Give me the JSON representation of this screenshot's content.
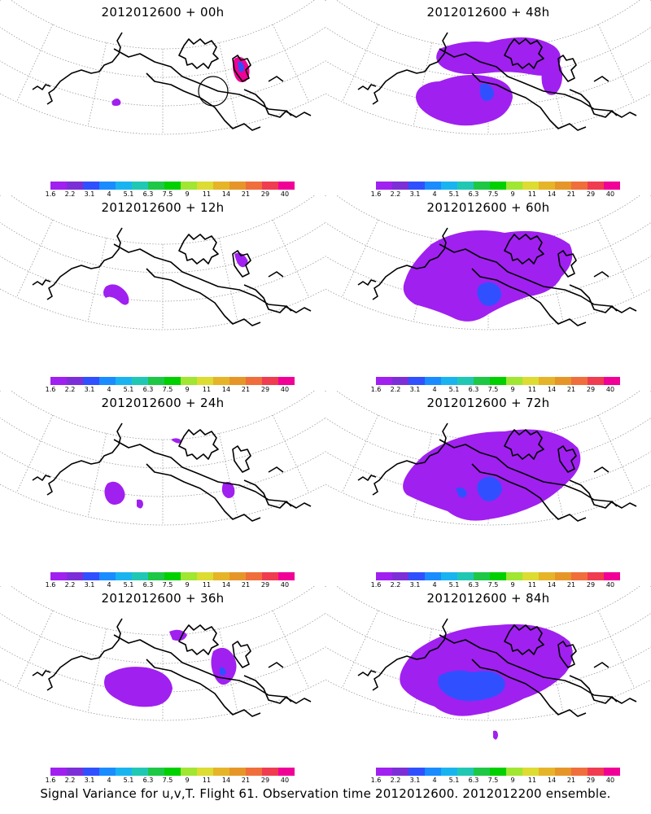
{
  "colorbar": {
    "labels": [
      "1.6",
      "2.2",
      "3.1",
      "4",
      "5.1",
      "6.3",
      "7.5",
      "9",
      "11",
      "14",
      "21",
      "29",
      "40"
    ],
    "colors": [
      "#a020f0",
      "#7c2fd6",
      "#3050ff",
      "#1a8cff",
      "#19b4f0",
      "#20c8b4",
      "#1ec846",
      "#00d000",
      "#a0e632",
      "#dcdc32",
      "#e6b428",
      "#e69628",
      "#f06e3c",
      "#f03c50",
      "#f00096"
    ]
  },
  "panels": [
    {
      "title": "2012012600 + 00h",
      "lead": "00h"
    },
    {
      "title": "2012012600 + 48h",
      "lead": "48h"
    },
    {
      "title": "2012012600 + 12h",
      "lead": "12h"
    },
    {
      "title": "2012012600 + 60h",
      "lead": "60h"
    },
    {
      "title": "2012012600 + 24h",
      "lead": "24h"
    },
    {
      "title": "2012012600 + 72h",
      "lead": "72h"
    },
    {
      "title": "2012012600 + 36h",
      "lead": "36h"
    },
    {
      "title": "2012012600 + 84h",
      "lead": "84h"
    }
  ],
  "footer": "Signal Variance for u,v,T. Flight 61. Observation time 2012012600. 2012012200 ensemble."
}
